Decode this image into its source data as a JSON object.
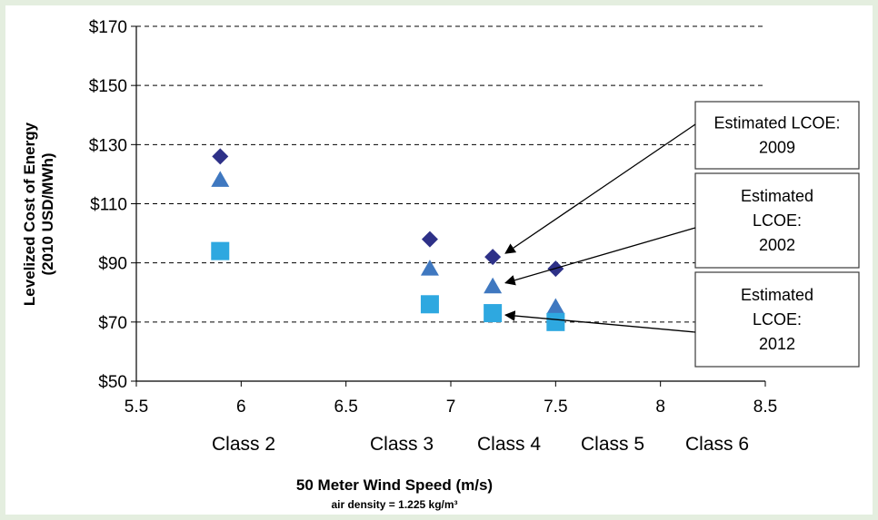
{
  "chart_data": {
    "type": "scatter",
    "xlabel": "50 Meter Wind Speed (m/s)",
    "xlabel_note": "air density = 1.225 kg/m³",
    "ylabel_line1": "Levelized Cost of Energy",
    "ylabel_line2": "(2010 USD/MWh)",
    "xlim": [
      5.5,
      8.5
    ],
    "ylim": [
      50,
      170
    ],
    "x_ticks": [
      5.5,
      6,
      6.5,
      7,
      7.5,
      8,
      8.5
    ],
    "x_tick_labels": [
      "5.5",
      "6",
      "6.5",
      "7",
      "7.5",
      "8",
      "8.5"
    ],
    "y_ticks": [
      50,
      70,
      90,
      110,
      130,
      150,
      170
    ],
    "y_tick_labels": [
      "$50",
      "$70",
      "$90",
      "$110",
      "$130",
      "$150",
      "$170"
    ],
    "grid": "horizontal dashed",
    "wind_classes": [
      {
        "label": "Class 2",
        "x": 5.9
      },
      {
        "label": "Class 3",
        "x": 6.9
      },
      {
        "label": "Class 4",
        "x": 7.2
      },
      {
        "label": "Class 5",
        "x": 7.5
      },
      {
        "label": "Class 6",
        "x": 8.0
      }
    ],
    "series": [
      {
        "name": "Estimated LCOE: 2009",
        "marker": "diamond",
        "color": "#2e3188",
        "points": [
          [
            5.9,
            126
          ],
          [
            6.9,
            98
          ],
          [
            7.2,
            92
          ],
          [
            7.5,
            88
          ]
        ]
      },
      {
        "name": "Estimated LCOE: 2002",
        "marker": "triangle",
        "color": "#3f78c0",
        "points": [
          [
            5.9,
            118
          ],
          [
            6.9,
            88
          ],
          [
            7.2,
            82
          ],
          [
            7.5,
            75
          ]
        ]
      },
      {
        "name": "Estimated LCOE: 2012",
        "marker": "square",
        "color": "#2ea8e0",
        "points": [
          [
            5.9,
            94
          ],
          [
            6.9,
            76
          ],
          [
            7.2,
            73
          ],
          [
            7.5,
            70
          ]
        ]
      }
    ],
    "callouts": [
      {
        "lines": [
          "Estimated LCOE:",
          "2009"
        ]
      },
      {
        "lines": [
          "Estimated",
          "LCOE:",
          "2002"
        ]
      },
      {
        "lines": [
          "Estimated",
          "LCOE:",
          "2012"
        ]
      }
    ]
  }
}
